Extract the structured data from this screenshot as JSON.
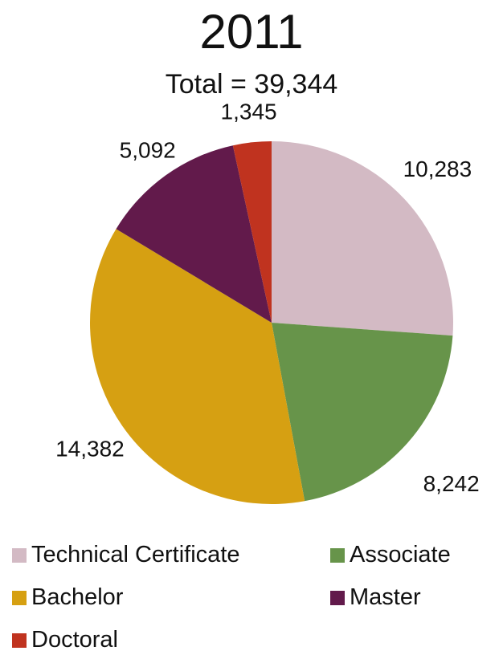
{
  "chart_data": {
    "type": "pie",
    "title": "2011",
    "subtitle": "Total = 39,344",
    "slices": [
      {
        "label": "Technical Certificate",
        "value": 10283,
        "display": "10,283",
        "color": "#d3bac4"
      },
      {
        "label": "Associate",
        "value": 8242,
        "display": "8,242",
        "color": "#67944a"
      },
      {
        "label": "Bachelor",
        "value": 14382,
        "display": "14,382",
        "color": "#d6a012"
      },
      {
        "label": "Master",
        "value": 5092,
        "display": "5,092",
        "color": "#621a4b"
      },
      {
        "label": "Doctoral",
        "value": 1345,
        "display": "1,345",
        "color": "#c0331f"
      }
    ],
    "legend_position": "bottom"
  }
}
